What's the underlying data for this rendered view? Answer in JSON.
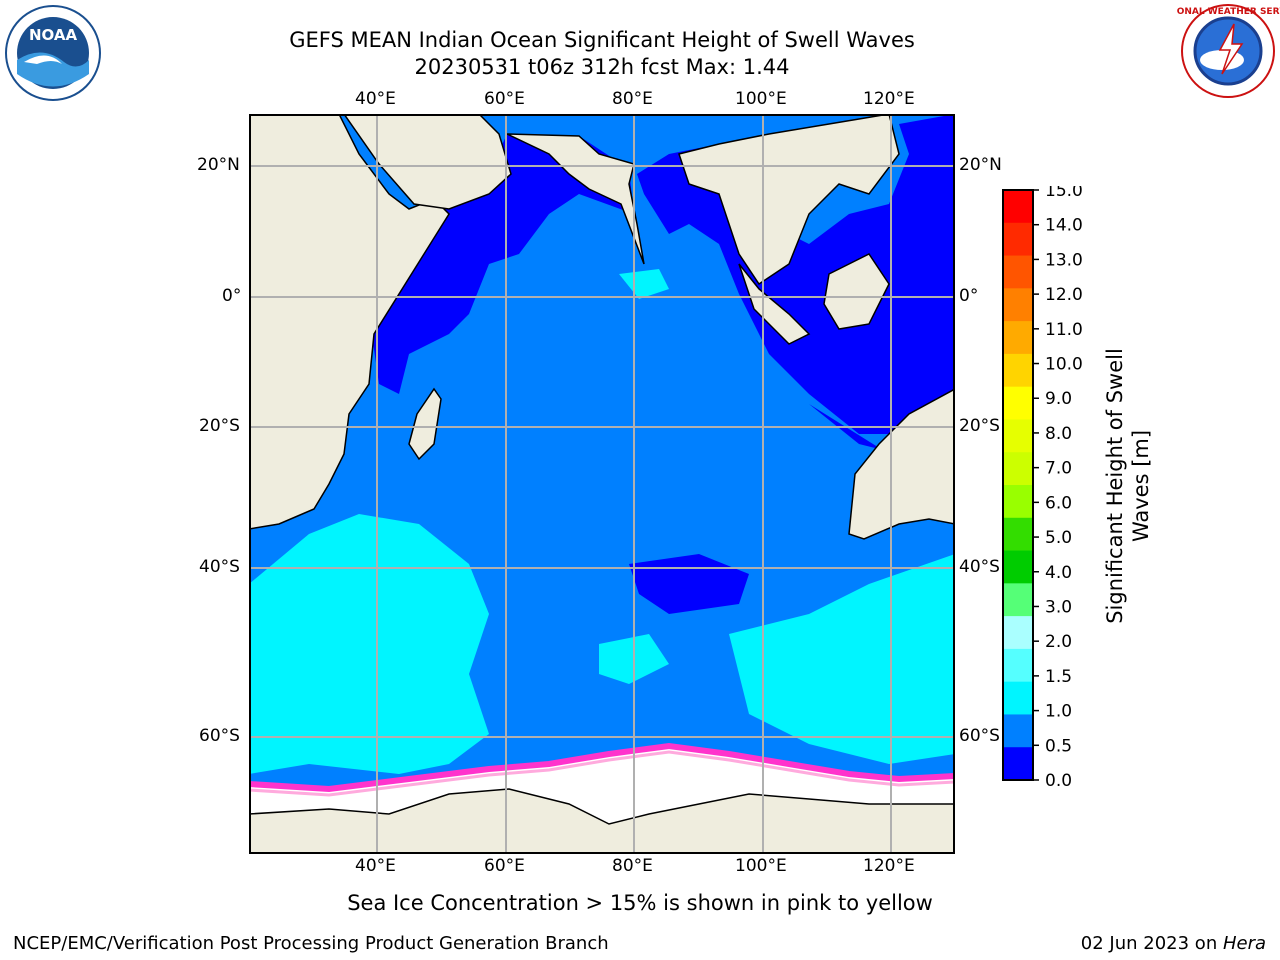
{
  "header": {
    "title_line1": "GEFS MEAN Indian Ocean Significant Height of Swell Waves",
    "title_line2": "20230531 t06z 312h fcst   Max: 1.44"
  },
  "logos": {
    "left_text": "NOAA",
    "right_text": "NATIONAL WEATHER SERVICE"
  },
  "map": {
    "lon_labels": [
      "40°E",
      "60°E",
      "80°E",
      "100°E",
      "120°E"
    ],
    "lat_labels": [
      "20°N",
      "0°",
      "20°S",
      "40°S",
      "60°S"
    ]
  },
  "colorbar": {
    "title_line1": "Significant Height of Swell",
    "title_line2": "Waves [m]",
    "ticks": [
      "15.0",
      "14.0",
      "13.0",
      "12.0",
      "11.0",
      "10.0",
      "9.0",
      "8.0",
      "7.0",
      "6.0",
      "5.0",
      "4.0",
      "3.0",
      "2.0",
      "1.5",
      "1.0",
      "0.5",
      "0.0"
    ],
    "colors": [
      "#ff0000",
      "#ff2a00",
      "#ff5500",
      "#ff8000",
      "#ffaa00",
      "#ffd400",
      "#ffff00",
      "#e6ff00",
      "#ccff00",
      "#99ff00",
      "#33dd00",
      "#00cc00",
      "#55ff77",
      "#aaffff",
      "#55ffff",
      "#00f5ff",
      "#0080ff",
      "#0000ff"
    ]
  },
  "colors": {
    "land": "#efedde",
    "ocean_low": "#0000ff",
    "ocean_mid": "#0080ff",
    "ocean_high": "#00f5ff",
    "ice": "#ffffff",
    "ice_edge": "#ff33cc",
    "grid": "#b0b0b0"
  },
  "footer": {
    "note": "Sea Ice Concentration > 15% is shown in pink to yellow",
    "left": "NCEP/EMC/Verification Post Processing Product Generation Branch",
    "right_date": "02 Jun 2023 on ",
    "right_host": "Hera"
  }
}
